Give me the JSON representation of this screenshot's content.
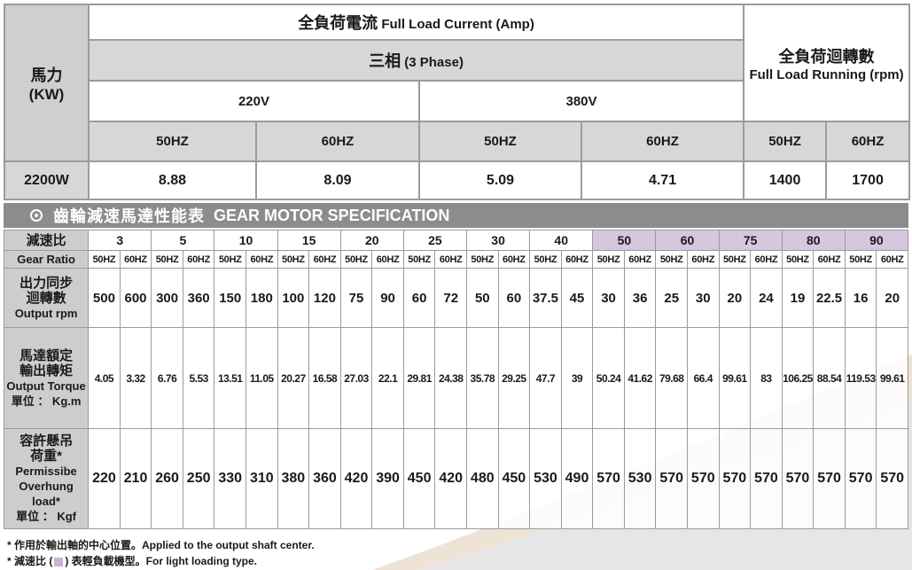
{
  "current_table": {
    "hp_label_zh": "馬力",
    "hp_label_en": "(KW)",
    "title_zh": "全負荷電流",
    "title_en": "Full Load Current (Amp)",
    "phase_zh": "三相",
    "phase_en": "(3 Phase)",
    "rpm_title_zh": "全負荷迴轉數",
    "rpm_title_en": "Full Load Running (rpm)",
    "volt_220": "220V",
    "volt_380": "380V",
    "freq_labels": [
      "50HZ",
      "60HZ",
      "50HZ",
      "60HZ",
      "50HZ",
      "60HZ"
    ],
    "power": "2200W",
    "values": [
      "8.88",
      "8.09",
      "5.09",
      "4.71",
      "1400",
      "1700"
    ]
  },
  "section": {
    "title_zh": "齒輪減速馬達性能表",
    "title_en": "GEAR MOTOR SPECIFICATION"
  },
  "spec_table": {
    "row_labels": {
      "ratio_zh": "減速比",
      "ratio_en": "Gear Ratio",
      "rpm_zh1": "出力同步",
      "rpm_zh2": "迴轉數",
      "rpm_en": "Output rpm",
      "torque_zh1": "馬達額定",
      "torque_zh2": "輸出轉矩",
      "torque_en": "Output Torque",
      "torque_unit": "單位 ： Kg.m",
      "load_zh1": "容許懸吊",
      "load_zh2": "荷重*",
      "load_en1": "Permissibe",
      "load_en2": "Overhung load*",
      "load_unit": "單位 ： Kgf"
    },
    "ratios": [
      "3",
      "5",
      "10",
      "15",
      "20",
      "25",
      "30",
      "40",
      "50",
      "60",
      "75",
      "80",
      "90"
    ],
    "light_ratios": [
      false,
      false,
      false,
      false,
      false,
      false,
      false,
      false,
      true,
      true,
      true,
      true,
      true
    ],
    "freq_pair": [
      "50HZ",
      "60HZ"
    ],
    "output_rpm": [
      "500",
      "600",
      "300",
      "360",
      "150",
      "180",
      "100",
      "120",
      "75",
      "90",
      "60",
      "72",
      "50",
      "60",
      "37.5",
      "45",
      "30",
      "36",
      "25",
      "30",
      "20",
      "24",
      "19",
      "22.5",
      "16",
      "20"
    ],
    "output_torque": [
      "4.05",
      "3.32",
      "6.76",
      "5.53",
      "13.51",
      "11.05",
      "20.27",
      "16.58",
      "27.03",
      "22.1",
      "29.81",
      "24.38",
      "35.78",
      "29.25",
      "47.7",
      "39",
      "50.24",
      "41.62",
      "79.68",
      "66.4",
      "99.61",
      "83",
      "106.25",
      "88.54",
      "119.53",
      "99.61"
    ],
    "overhung_load": [
      "220",
      "210",
      "260",
      "250",
      "330",
      "310",
      "380",
      "360",
      "420",
      "390",
      "450",
      "420",
      "480",
      "450",
      "530",
      "490",
      "570",
      "530",
      "570",
      "570",
      "570",
      "570",
      "570",
      "570",
      "570",
      "570"
    ]
  },
  "footnotes": {
    "note1": "* 作用於輸出軸的中心位置。Applied to the output shaft center.",
    "note2_before": "* 減速比 (",
    "note2_after": ") 表輕負載機型。For light loading type."
  },
  "colors": {
    "header_grey": "#d7d7d8",
    "banner_grey": "#8c8c8f",
    "light_load_purple": "#d6c6df",
    "decor_beige": "#efe3d6"
  }
}
